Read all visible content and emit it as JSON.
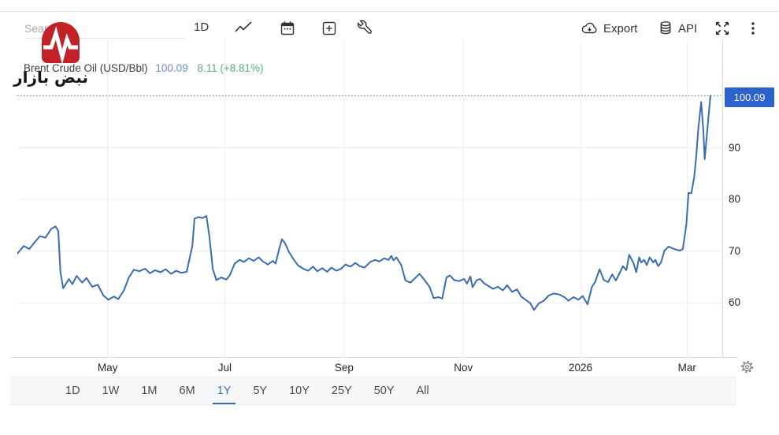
{
  "toolbar": {
    "search_placeholder": "Search",
    "interval_label": "1D",
    "export_label": "Export",
    "api_label": "API"
  },
  "logo": {
    "text": "نبض بازار"
  },
  "header": {
    "instrument": "Brent Crude Oil (USD/Bbl)",
    "last_price": "100.09",
    "change": "8.11 (+8.81%)"
  },
  "chart_data": {
    "type": "line",
    "title": "Brent Crude Oil (USD/Bbl)",
    "last_price": 100.09,
    "last_price_label": "100.09",
    "change_abs": "+8.11",
    "change_pct": "+8.81%",
    "ylim": [
      49.5,
      111
    ],
    "y_ticks": [
      60,
      70,
      80,
      90
    ],
    "x_ticks": [
      {
        "label": "May",
        "pos": 12.8
      },
      {
        "label": "Jul",
        "pos": 29.4
      },
      {
        "label": "Sep",
        "pos": 46.3
      },
      {
        "label": "Nov",
        "pos": 63.2
      },
      {
        "label": "2026",
        "pos": 79.8
      },
      {
        "label": "Mar",
        "pos": 94.9
      }
    ],
    "grid": true,
    "legend": "none",
    "line_color": "#3a6cb4",
    "series": [
      {
        "name": "Brent Crude Oil (USD/Bbl)",
        "points": [
          [
            0,
            69.5
          ],
          [
            0.9,
            71
          ],
          [
            1.7,
            70.4
          ],
          [
            2.5,
            71.8
          ],
          [
            3.2,
            72.9
          ],
          [
            4,
            72.6
          ],
          [
            4.8,
            74.3
          ],
          [
            5.4,
            74.8
          ],
          [
            5.8,
            73.9
          ],
          [
            6.1,
            66
          ],
          [
            6.5,
            62.8
          ],
          [
            7.3,
            64.6
          ],
          [
            7.8,
            63.6
          ],
          [
            8.4,
            65.2
          ],
          [
            9.2,
            63.9
          ],
          [
            9.8,
            64.8
          ],
          [
            10.6,
            63.1
          ],
          [
            11.4,
            63.5
          ],
          [
            12.2,
            61.4
          ],
          [
            12.9,
            60.6
          ],
          [
            13.7,
            61.2
          ],
          [
            14.3,
            60.7
          ],
          [
            15.1,
            62.4
          ],
          [
            15.8,
            64.9
          ],
          [
            16.5,
            66.4
          ],
          [
            17.3,
            66.1
          ],
          [
            18.1,
            66.6
          ],
          [
            18.8,
            65.7
          ],
          [
            19.5,
            66.3
          ],
          [
            20.3,
            65.9
          ],
          [
            21,
            66.5
          ],
          [
            21.8,
            65.6
          ],
          [
            22.5,
            66.2
          ],
          [
            23.2,
            65.8
          ],
          [
            24,
            66
          ],
          [
            24.4,
            68.5
          ],
          [
            24.8,
            71
          ],
          [
            25.1,
            76.3
          ],
          [
            25.7,
            76.6
          ],
          [
            26.2,
            76.4
          ],
          [
            26.8,
            76.8
          ],
          [
            27.2,
            73
          ],
          [
            27.7,
            66.5
          ],
          [
            28.2,
            64.4
          ],
          [
            28.9,
            64.9
          ],
          [
            29.6,
            64.5
          ],
          [
            30.1,
            65.3
          ],
          [
            30.8,
            67.6
          ],
          [
            31.5,
            68.3
          ],
          [
            32.1,
            67.9
          ],
          [
            32.8,
            68.6
          ],
          [
            33.5,
            68.1
          ],
          [
            34.2,
            68.8
          ],
          [
            34.8,
            68
          ],
          [
            35.5,
            67.4
          ],
          [
            36.2,
            68.1
          ],
          [
            36.6,
            67.6
          ],
          [
            37.2,
            70.9
          ],
          [
            37.5,
            72.3
          ],
          [
            37.9,
            71.6
          ],
          [
            38.5,
            69.8
          ],
          [
            39.2,
            68.3
          ],
          [
            39.8,
            67.2
          ],
          [
            40.5,
            66.6
          ],
          [
            41.2,
            66.2
          ],
          [
            41.9,
            67
          ],
          [
            42.5,
            66.1
          ],
          [
            43.2,
            66.7
          ],
          [
            43.9,
            66
          ],
          [
            44.5,
            66.8
          ],
          [
            45.2,
            66.2
          ],
          [
            45.9,
            66.6
          ],
          [
            46.5,
            67.4
          ],
          [
            47.2,
            67
          ],
          [
            47.9,
            67.7
          ],
          [
            48.5,
            67.1
          ],
          [
            49.2,
            66.8
          ],
          [
            50,
            67.9
          ],
          [
            50.7,
            68.3
          ],
          [
            51.3,
            68
          ],
          [
            52,
            68.6
          ],
          [
            52.6,
            68.3
          ],
          [
            53,
            69.1
          ],
          [
            53.3,
            68.2
          ],
          [
            53.7,
            68.8
          ],
          [
            54.4,
            67.3
          ],
          [
            55,
            64.3
          ],
          [
            55.7,
            63.9
          ],
          [
            56.4,
            64.8
          ],
          [
            57,
            65.6
          ],
          [
            57.7,
            64.4
          ],
          [
            58.4,
            63.1
          ],
          [
            59,
            60.9
          ],
          [
            59.7,
            61.1
          ],
          [
            60.2,
            60.8
          ],
          [
            60.8,
            64.9
          ],
          [
            61.3,
            65.3
          ],
          [
            61.9,
            64.4
          ],
          [
            62.6,
            64.2
          ],
          [
            63.3,
            64.6
          ],
          [
            63.7,
            63.7
          ],
          [
            64.2,
            65.1
          ],
          [
            64.5,
            63
          ],
          [
            65.1,
            64.4
          ],
          [
            65.6,
            64.6
          ],
          [
            66.1,
            63.8
          ],
          [
            66.7,
            63.3
          ],
          [
            67.4,
            62.7
          ],
          [
            68.1,
            63.1
          ],
          [
            68.8,
            62.4
          ],
          [
            69.4,
            63.4
          ],
          [
            70.1,
            62.1
          ],
          [
            70.8,
            62.6
          ],
          [
            71.4,
            61.2
          ],
          [
            72.1,
            60.5
          ],
          [
            72.7,
            59.9
          ],
          [
            73.2,
            58.6
          ],
          [
            73.9,
            59.9
          ],
          [
            74.6,
            60.4
          ],
          [
            75.3,
            61.4
          ],
          [
            76,
            61.8
          ],
          [
            76.8,
            61.6
          ],
          [
            77.5,
            61.1
          ],
          [
            78.1,
            60.4
          ],
          [
            78.8,
            61.1
          ],
          [
            79.5,
            60.6
          ],
          [
            80.1,
            61.3
          ],
          [
            80.8,
            59.7
          ],
          [
            81.4,
            63
          ],
          [
            81.9,
            64.1
          ],
          [
            82.5,
            66.5
          ],
          [
            83.1,
            64.4
          ],
          [
            83.7,
            64
          ],
          [
            84.3,
            65.5
          ],
          [
            84.8,
            64.3
          ],
          [
            85.4,
            65.9
          ],
          [
            85.8,
            67.1
          ],
          [
            86.3,
            66.3
          ],
          [
            86.7,
            69.3
          ],
          [
            87.3,
            67.7
          ],
          [
            87.7,
            65.9
          ],
          [
            88.1,
            68.8
          ],
          [
            88.4,
            67.8
          ],
          [
            88.8,
            68.3
          ],
          [
            89.2,
            67.3
          ],
          [
            89.6,
            68.8
          ],
          [
            90.1,
            67.8
          ],
          [
            90.4,
            68.3
          ],
          [
            90.8,
            67.1
          ],
          [
            91.2,
            67.8
          ],
          [
            91.7,
            70.1
          ],
          [
            92.3,
            70.9
          ],
          [
            92.7,
            70.6
          ],
          [
            93.3,
            70.3
          ],
          [
            93.9,
            70.1
          ],
          [
            94.3,
            70.4
          ],
          [
            94.8,
            75.2
          ],
          [
            95.1,
            81.3
          ],
          [
            95.5,
            81.2
          ],
          [
            95.9,
            84.3
          ],
          [
            96.2,
            88.5
          ],
          [
            96.5,
            93.8
          ],
          [
            96.9,
            98.9
          ],
          [
            97.2,
            93.5
          ],
          [
            97.4,
            87.8
          ],
          [
            97.8,
            94
          ],
          [
            98.2,
            100.09
          ]
        ]
      }
    ]
  },
  "range_bar": {
    "options": [
      "1D",
      "1W",
      "1M",
      "6M",
      "1Y",
      "5Y",
      "10Y",
      "25Y",
      "50Y",
      "All"
    ],
    "selected": "1Y"
  },
  "colors": {
    "line": "#3a6cb4",
    "badge": "#2a62d0",
    "price_text": "#6d8dc5",
    "change_text": "#58b175",
    "logo_red": "#c32128",
    "grid": "#ececec",
    "axis": "#dcdcdc",
    "selected_range": "#3e6fb8"
  }
}
